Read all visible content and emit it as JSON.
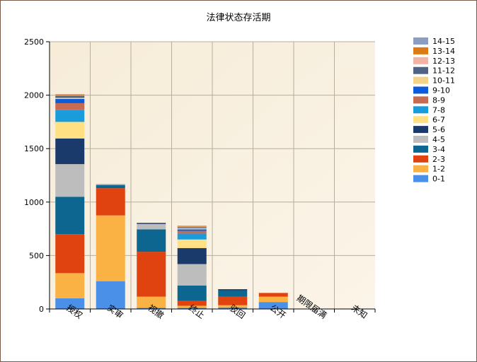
{
  "chart_data": {
    "type": "bar",
    "stacked": true,
    "title": "法律状态存活期",
    "xlabel": "",
    "ylabel": "",
    "ylim": [
      0,
      2500
    ],
    "yticks": [
      0,
      500,
      1000,
      1500,
      2000,
      2500
    ],
    "grid": true,
    "legend_position": "right",
    "categories": [
      "授权",
      "实审",
      "视撤",
      "终止",
      "驳回",
      "公开",
      "期限届满",
      "未知"
    ],
    "series": [
      {
        "name": "0-1",
        "color": "#4a8fe8",
        "values": [
          100,
          260,
          10,
          10,
          15,
          65,
          0,
          0
        ]
      },
      {
        "name": "1-2",
        "color": "#f9b243",
        "values": [
          235,
          615,
          105,
          20,
          20,
          50,
          0,
          0
        ]
      },
      {
        "name": "2-3",
        "color": "#e0430f",
        "values": [
          365,
          255,
          420,
          45,
          80,
          35,
          0,
          0
        ]
      },
      {
        "name": "3-4",
        "color": "#0c6690",
        "values": [
          350,
          30,
          210,
          145,
          60,
          0,
          0,
          0
        ]
      },
      {
        "name": "4-5",
        "color": "#bdbdbd",
        "values": [
          305,
          10,
          50,
          200,
          0,
          0,
          0,
          0
        ]
      },
      {
        "name": "5-6",
        "color": "#1b3a6c",
        "values": [
          240,
          0,
          10,
          150,
          10,
          0,
          0,
          0
        ]
      },
      {
        "name": "6-7",
        "color": "#ffe083",
        "values": [
          155,
          0,
          0,
          80,
          0,
          0,
          0,
          0
        ]
      },
      {
        "name": "7-8",
        "color": "#1a9bdc",
        "values": [
          110,
          0,
          0,
          55,
          0,
          0,
          0,
          0
        ]
      },
      {
        "name": "8-9",
        "color": "#c56c52",
        "values": [
          65,
          0,
          0,
          25,
          0,
          0,
          0,
          0
        ]
      },
      {
        "name": "9-10",
        "color": "#0c5bd9",
        "values": [
          40,
          0,
          0,
          15,
          0,
          0,
          0,
          0
        ]
      },
      {
        "name": "10-11",
        "color": "#f4d288",
        "values": [
          10,
          0,
          0,
          10,
          0,
          0,
          0,
          0
        ]
      },
      {
        "name": "11-12",
        "color": "#4f6385",
        "values": [
          20,
          0,
          0,
          10,
          0,
          0,
          0,
          0
        ]
      },
      {
        "name": "12-13",
        "color": "#f0b3a6",
        "values": [
          5,
          0,
          0,
          5,
          0,
          0,
          0,
          0
        ]
      },
      {
        "name": "13-14",
        "color": "#db7b16",
        "values": [
          5,
          0,
          0,
          5,
          0,
          0,
          0,
          0
        ]
      },
      {
        "name": "14-15",
        "color": "#8a9dc3",
        "values": [
          5,
          0,
          0,
          5,
          0,
          0,
          0,
          0
        ]
      }
    ]
  }
}
